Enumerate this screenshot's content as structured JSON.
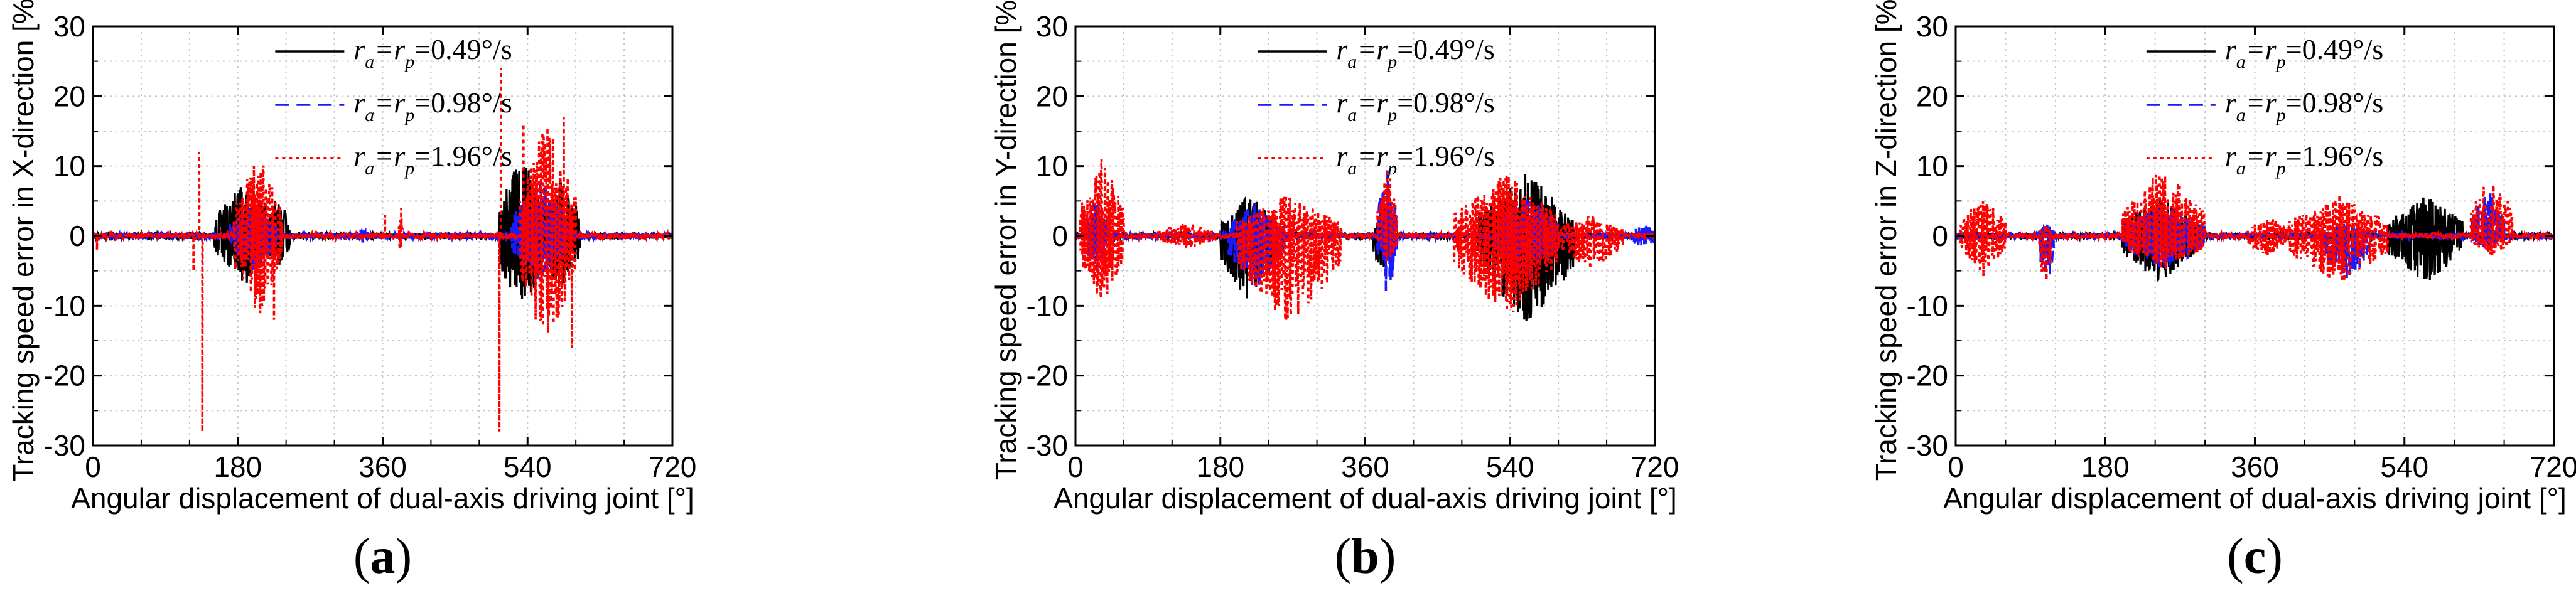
{
  "chart_data": [
    {
      "type": "line",
      "panel_label": {
        "open": "(",
        "letter": "a",
        "close": ")"
      },
      "xlabel": "Angular displacement of dual-axis driving joint [°]",
      "ylabel": "Tracking speed error in X-direction [%]",
      "xlim": [
        0,
        720
      ],
      "ylim": [
        -30,
        30
      ],
      "xticks": [
        0,
        180,
        360,
        540,
        720
      ],
      "yticks": [
        -30,
        -20,
        -10,
        0,
        10,
        20,
        30
      ],
      "grid": true,
      "legend_position": "top-center",
      "series": [
        {
          "name_parts": [
            "r",
            "a",
            "=r",
            "p",
            "=0.49°/s"
          ],
          "color": "#000000",
          "dash": "solid",
          "bursts": [
            [
              150,
              230,
              8,
              7
            ],
            [
              215,
              245,
              6,
              5
            ],
            [
              505,
              560,
              12,
              12
            ],
            [
              555,
              605,
              9,
              8
            ]
          ]
        },
        {
          "name_parts": [
            "r",
            "a",
            "=r",
            "p",
            "=0.98°/s"
          ],
          "color": "#1a1aff",
          "dash": "dashed",
          "bursts": [
            [
              170,
              230,
              5,
              5
            ],
            [
              325,
              345,
              1,
              1
            ],
            [
              520,
              590,
              8,
              7
            ]
          ]
        },
        {
          "name_parts": [
            "r",
            "a",
            "=r",
            "p",
            "=1.96°/s"
          ],
          "color": "#ff0000",
          "dash": "dotted",
          "bursts": [
            [
              175,
              235,
              12,
              12
            ],
            [
              380,
              385,
              4,
              3
            ],
            [
              530,
              600,
              17,
              16
            ]
          ],
          "spikes": [
            [
              5,
              -2
            ],
            [
              125,
              -5
            ],
            [
              132,
              12
            ],
            [
              136,
              -28
            ],
            [
              200,
              10
            ],
            [
              225,
              -12
            ],
            [
              363,
              3
            ],
            [
              383,
              4
            ],
            [
              505,
              -28
            ],
            [
              507,
              24
            ],
            [
              535,
              16
            ],
            [
              550,
              -12
            ],
            [
              585,
              17
            ],
            [
              595,
              -16
            ]
          ]
        }
      ]
    },
    {
      "type": "line",
      "panel_label": {
        "open": "(",
        "letter": "b",
        "close": ")"
      },
      "xlabel": "Angular displacement of dual-axis driving joint [°]",
      "ylabel": "Tracking speed error in Y-direction [%]",
      "xlim": [
        0,
        720
      ],
      "ylim": [
        -30,
        30
      ],
      "xticks": [
        0,
        180,
        360,
        540,
        720
      ],
      "yticks": [
        -30,
        -20,
        -10,
        0,
        10,
        20,
        30
      ],
      "grid": true,
      "legend_position": "top-center",
      "series": [
        {
          "name_parts": [
            "r",
            "a",
            "=r",
            "p",
            "=0.49°/s"
          ],
          "color": "#000000",
          "dash": "solid",
          "bursts": [
            [
              180,
              250,
              6,
              10
            ],
            [
              370,
              390,
              3,
              6
            ],
            [
              500,
              620,
              9,
              13
            ]
          ]
        },
        {
          "name_parts": [
            "r",
            "a",
            "=r",
            "p",
            "=0.98°/s"
          ],
          "color": "#1a1aff",
          "dash": "dashed",
          "bursts": [
            [
              10,
              40,
              6,
              6
            ],
            [
              190,
              260,
              5,
              8
            ],
            [
              375,
              400,
              10,
              9
            ],
            [
              520,
              600,
              6,
              6
            ],
            [
              690,
              720,
              2,
              2
            ]
          ]
        },
        {
          "name_parts": [
            "r",
            "a",
            "=r",
            "p",
            "=1.96°/s"
          ],
          "color": "#ff0000",
          "dash": "dotted",
          "bursts": [
            [
              5,
              60,
              12,
              10
            ],
            [
              100,
              175,
              2,
              2
            ],
            [
              200,
              330,
              6,
              13
            ],
            [
              375,
              400,
              10,
              4
            ],
            [
              470,
              600,
              9,
              12
            ],
            [
              600,
              680,
              3,
              5
            ]
          ]
        }
      ]
    },
    {
      "type": "line",
      "panel_label": {
        "open": "(",
        "letter": "c",
        "close": ")"
      },
      "xlabel": "Angular displacement of dual-axis driving joint [°]",
      "ylabel": "Tracking speed error in Z-direction [%]",
      "xlim": [
        0,
        720
      ],
      "ylim": [
        -30,
        30
      ],
      "xticks": [
        0,
        180,
        360,
        540,
        720
      ],
      "yticks": [
        -30,
        -20,
        -10,
        0,
        10,
        20,
        30
      ],
      "grid": true,
      "legend_position": "top-center",
      "series": [
        {
          "name_parts": [
            "r",
            "a",
            "=r",
            "p",
            "=0.49°/s"
          ],
          "color": "#000000",
          "dash": "solid",
          "bursts": [
            [
              200,
              290,
              6,
              7
            ],
            [
              520,
              610,
              6,
              7
            ]
          ]
        },
        {
          "name_parts": [
            "r",
            "a",
            "=r",
            "p",
            "=0.98°/s"
          ],
          "color": "#1a1aff",
          "dash": "dashed",
          "bursts": [
            [
              100,
              120,
              2,
              8
            ],
            [
              200,
              300,
              5,
              5
            ],
            [
              440,
              500,
              2,
              7
            ],
            [
              620,
              660,
              7,
              2
            ]
          ]
        },
        {
          "name_parts": [
            "r",
            "a",
            "=r",
            "p",
            "=1.96°/s"
          ],
          "color": "#ff0000",
          "dash": "dotted",
          "bursts": [
            [
              5,
              60,
              6,
              6
            ],
            [
              100,
              115,
              2,
              10
            ],
            [
              200,
              300,
              10,
              5
            ],
            [
              350,
              400,
              3,
              3
            ],
            [
              400,
              520,
              6,
              7
            ],
            [
              620,
              670,
              10,
              3
            ]
          ]
        }
      ]
    }
  ]
}
